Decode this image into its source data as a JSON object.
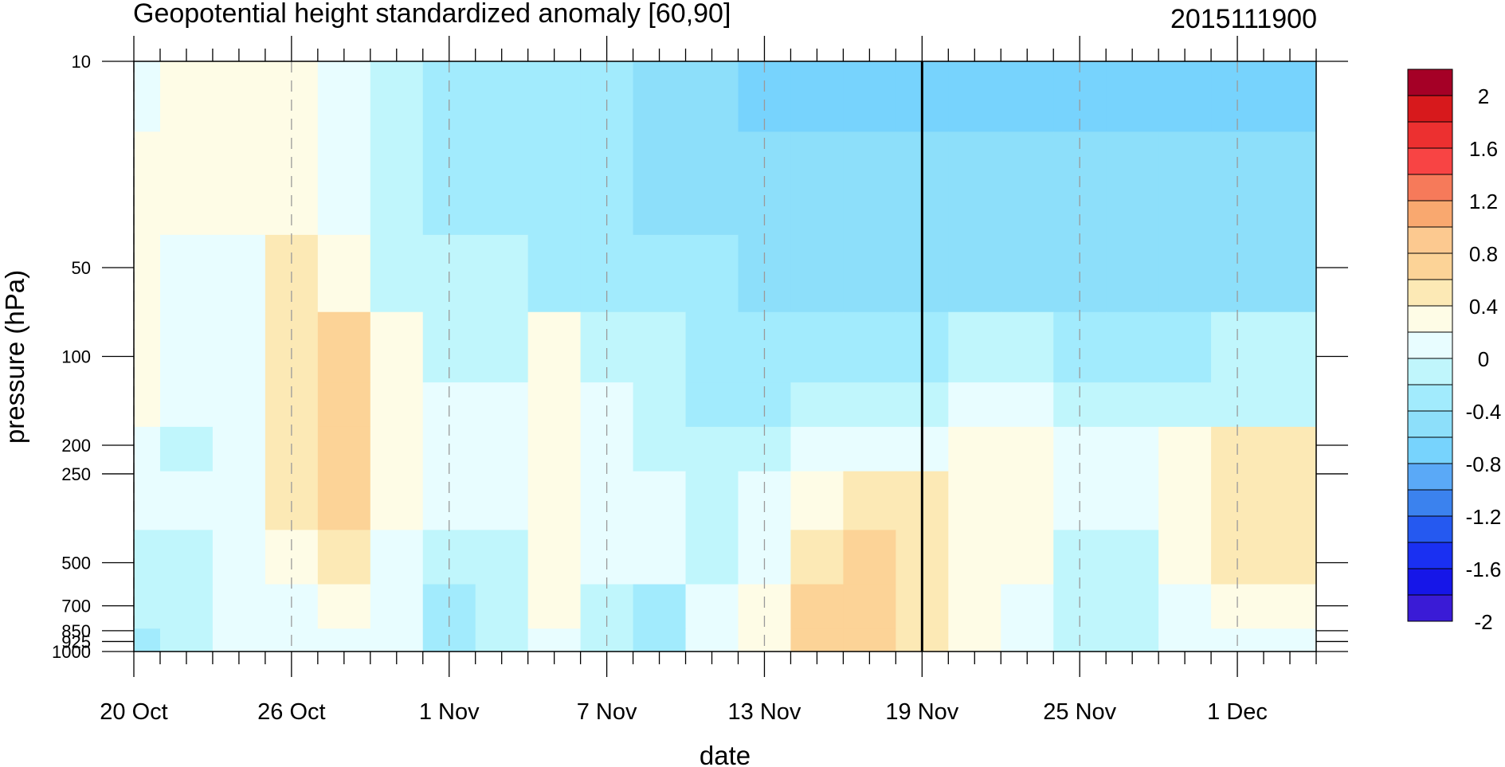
{
  "chart_data": {
    "type": "heatmap",
    "title": "Geopotential height standardized anomaly [60,90]",
    "run_label": "2015111900",
    "xlabel": "date",
    "ylabel": "pressure (hPa)",
    "y_scale": "log",
    "y_reversed": true,
    "y_ticks": [
      {
        "value": 10,
        "label": "10"
      },
      {
        "value": 50,
        "label": "50"
      },
      {
        "value": 100,
        "label": "100"
      },
      {
        "value": 200,
        "label": "200"
      },
      {
        "value": 250,
        "label": "250"
      },
      {
        "value": 500,
        "label": "500"
      },
      {
        "value": 700,
        "label": "700"
      },
      {
        "value": 850,
        "label": "850"
      },
      {
        "value": 925,
        "label": "925"
      },
      {
        "value": 1000,
        "label": "1000"
      }
    ],
    "x_ticks": [
      {
        "date": "2015-10-20",
        "label": "20 Oct"
      },
      {
        "date": "2015-10-26",
        "label": "26 Oct"
      },
      {
        "date": "2015-11-01",
        "label": "1 Nov"
      },
      {
        "date": "2015-11-07",
        "label": "7 Nov"
      },
      {
        "date": "2015-11-13",
        "label": "13 Nov"
      },
      {
        "date": "2015-11-19",
        "label": "19 Nov"
      },
      {
        "date": "2015-11-25",
        "label": "25 Nov"
      },
      {
        "date": "2015-12-01",
        "label": "1 Dec"
      }
    ],
    "x_range": [
      "2015-10-20",
      "2015-12-04"
    ],
    "forecast_start": "2015-11-19",
    "dates": [
      "2015-10-20",
      "2015-10-22",
      "2015-10-24",
      "2015-10-26",
      "2015-10-28",
      "2015-10-30",
      "2015-11-01",
      "2015-11-03",
      "2015-11-05",
      "2015-11-07",
      "2015-11-09",
      "2015-11-11",
      "2015-11-13",
      "2015-11-15",
      "2015-11-17",
      "2015-11-19",
      "2015-11-21",
      "2015-11-23",
      "2015-11-25",
      "2015-11-27",
      "2015-11-29",
      "2015-12-01",
      "2015-12-03"
    ],
    "levels": [
      10,
      30,
      50,
      100,
      150,
      200,
      300,
      500,
      700,
      1000
    ],
    "values": [
      [
        -0.2,
        0.1,
        0.1,
        0.1,
        -0.1,
        -0.3,
        -0.5,
        -0.5,
        -0.6,
        -0.6,
        -0.7,
        -0.8,
        -0.9,
        -0.9,
        -0.9,
        -0.9,
        -0.9,
        -0.9,
        -0.9,
        -0.9,
        -0.9,
        -0.9,
        -0.9
      ],
      [
        0.05,
        0.05,
        0.05,
        0.05,
        -0.1,
        -0.3,
        -0.5,
        -0.5,
        -0.6,
        -0.6,
        -0.7,
        -0.7,
        -0.8,
        -0.8,
        -0.8,
        -0.8,
        -0.8,
        -0.8,
        -0.8,
        -0.8,
        -0.8,
        -0.8,
        -0.8
      ],
      [
        0.05,
        -0.1,
        -0.1,
        0.3,
        0.1,
        -0.3,
        -0.4,
        -0.4,
        -0.5,
        -0.5,
        -0.6,
        -0.6,
        -0.7,
        -0.7,
        -0.7,
        -0.7,
        -0.7,
        -0.7,
        -0.7,
        -0.7,
        -0.7,
        -0.7,
        -0.7
      ],
      [
        0.05,
        -0.1,
        -0.1,
        0.3,
        0.5,
        0.1,
        -0.3,
        -0.3,
        0.05,
        -0.3,
        -0.4,
        -0.5,
        -0.5,
        -0.5,
        -0.5,
        -0.5,
        -0.3,
        -0.4,
        -0.5,
        -0.5,
        -0.5,
        -0.4,
        -0.4
      ],
      [
        0.05,
        -0.2,
        -0.1,
        0.3,
        0.5,
        0.1,
        -0.2,
        -0.2,
        0.05,
        -0.2,
        -0.3,
        -0.5,
        -0.5,
        -0.4,
        -0.4,
        -0.3,
        -0.2,
        -0.2,
        -0.3,
        -0.4,
        -0.3,
        -0.3,
        -0.3
      ],
      [
        -0.05,
        -0.3,
        -0.1,
        0.2,
        0.5,
        0.1,
        -0.2,
        -0.2,
        0.05,
        -0.2,
        -0.3,
        -0.4,
        -0.4,
        -0.2,
        -0.1,
        -0.1,
        0.05,
        0.05,
        -0.2,
        -0.2,
        0.05,
        0.2,
        0.2
      ],
      [
        -0.1,
        -0.2,
        -0.1,
        0.2,
        0.4,
        0.1,
        -0.2,
        -0.2,
        0.05,
        -0.1,
        -0.2,
        -0.3,
        -0.2,
        0.05,
        0.2,
        0.2,
        0.05,
        0.05,
        -0.1,
        -0.1,
        0.05,
        0.3,
        0.3
      ],
      [
        -0.3,
        -0.3,
        -0.1,
        0.1,
        0.2,
        -0.1,
        -0.4,
        -0.3,
        0.05,
        -0.2,
        -0.2,
        -0.3,
        -0.1,
        0.3,
        0.4,
        0.2,
        0.05,
        0.05,
        -0.3,
        -0.3,
        0.05,
        0.2,
        0.3
      ],
      [
        -0.4,
        -0.3,
        -0.2,
        -0.05,
        0.05,
        -0.2,
        -0.5,
        -0.4,
        0.05,
        -0.3,
        -0.5,
        -0.2,
        0.05,
        0.4,
        0.5,
        0.3,
        0.05,
        -0.1,
        -0.4,
        -0.3,
        -0.1,
        0.05,
        0.1
      ],
      [
        -0.5,
        -0.4,
        -0.2,
        -0.1,
        -0.05,
        -0.2,
        -0.6,
        -0.4,
        -0.1,
        -0.4,
        -0.6,
        -0.2,
        0.05,
        0.5,
        0.6,
        0.3,
        0.05,
        -0.1,
        -0.4,
        -0.3,
        -0.1,
        -0.05,
        -0.05
      ]
    ],
    "colorbar": {
      "labels": [
        "2",
        "1.6",
        "1.2",
        "0.8",
        "0.4",
        "0",
        "-0.4",
        "-0.8",
        "-1.2",
        "-1.6",
        "-2"
      ],
      "colors": [
        "#a50026",
        "#d7191c",
        "#ec3030",
        "#f84444",
        "#f67a5a",
        "#f9a86f",
        "#fcc990",
        "#fcd397",
        "#fce9b5",
        "#fefce6",
        "#e8fdff",
        "#c0f6fc",
        "#a2ebfd",
        "#8ddffa",
        "#77d3fd",
        "#5aa9f7",
        "#3b82ee",
        "#2559f0",
        "#1a30f2",
        "#1616e8",
        "#3a1bd6"
      ]
    }
  }
}
